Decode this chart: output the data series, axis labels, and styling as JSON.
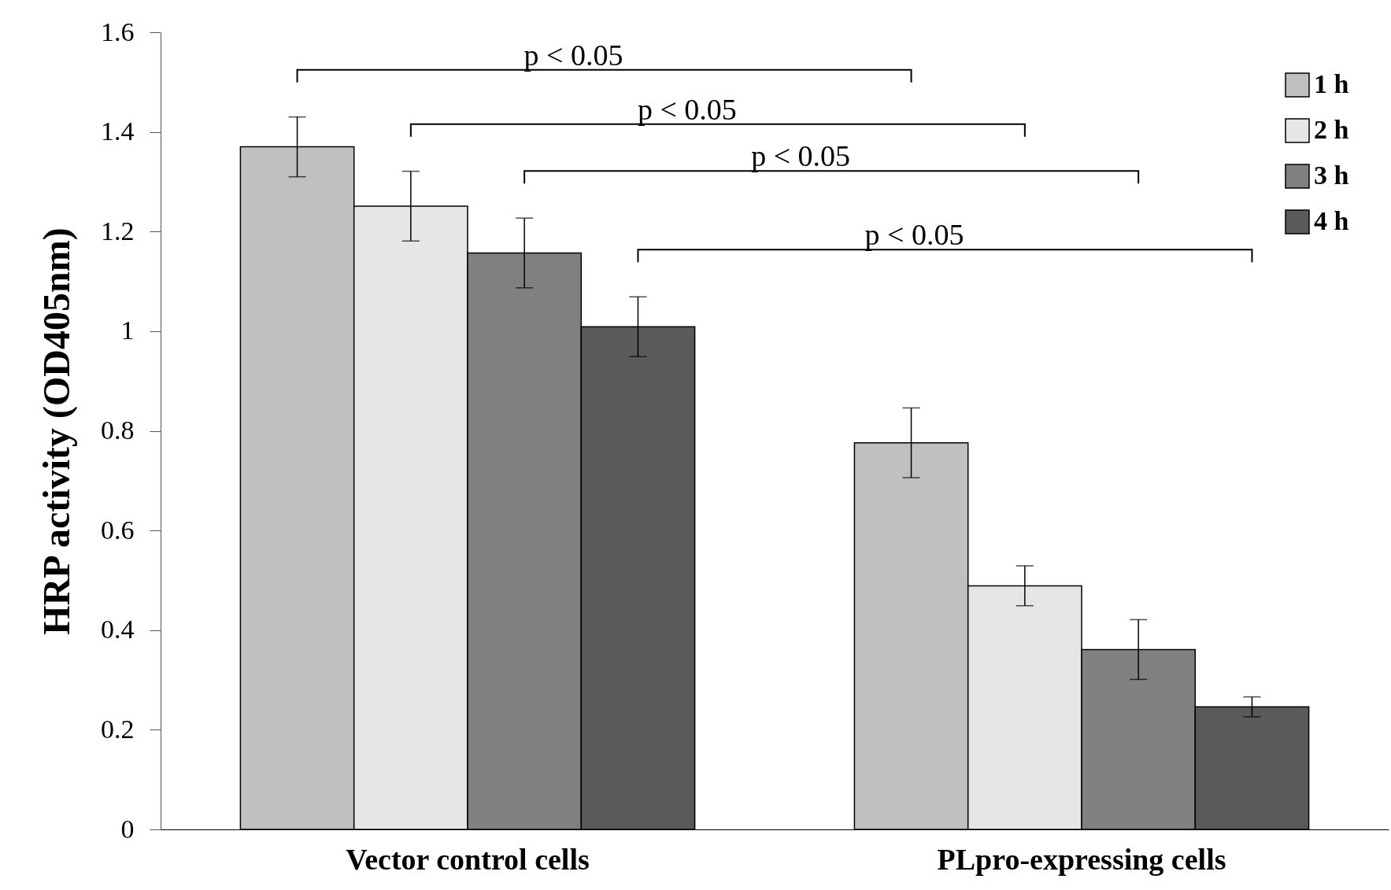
{
  "chart_data": {
    "type": "bar",
    "ylabel": "HRP activity (OD405nm)",
    "categories": [
      "Vector control cells",
      "PLpro-expressing cells"
    ],
    "series": [
      {
        "name": "1 h",
        "color": "#c0c0c0",
        "values": [
          1.37,
          0.776
        ],
        "errors": [
          0.06,
          0.07
        ]
      },
      {
        "name": "2 h",
        "color": "#e6e6e6",
        "values": [
          1.251,
          0.489
        ],
        "errors": [
          0.07,
          0.04
        ]
      },
      {
        "name": "3 h",
        "color": "#808080",
        "values": [
          1.157,
          0.361
        ],
        "errors": [
          0.07,
          0.06
        ]
      },
      {
        "name": "4 h",
        "color": "#5a5a5a",
        "values": [
          1.009,
          0.246
        ],
        "errors": [
          0.06,
          0.02
        ]
      }
    ],
    "ylim": [
      0,
      1.6
    ],
    "yticks": [
      0,
      0.2,
      0.4,
      0.6,
      0.8,
      1,
      1.2,
      1.4,
      1.6
    ],
    "grid": false,
    "legend": "top right",
    "annotations": [
      "p < 0.05",
      "p < 0.05",
      "p < 0.05",
      "p < 0.05"
    ]
  }
}
